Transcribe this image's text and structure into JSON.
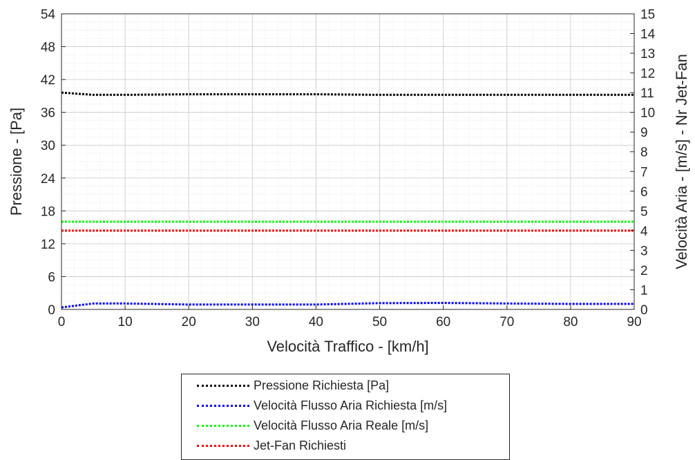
{
  "chart_data": {
    "type": "line",
    "xlabel": "Velocità Traffico - [km/h]",
    "ylabel": "Pressione - [Pa]",
    "ylabel_right": "Velocità Aria - [m/s] - Nr Jet-Fan",
    "xlim": [
      0,
      90
    ],
    "ylim": [
      0,
      54
    ],
    "ylim_right": [
      0,
      15
    ],
    "x_ticks": [
      "0",
      "10",
      "20",
      "30",
      "40",
      "50",
      "60",
      "70",
      "80",
      "90"
    ],
    "y_ticks": [
      "0",
      "6",
      "12",
      "18",
      "24",
      "30",
      "36",
      "42",
      "48",
      "54"
    ],
    "y_ticks_right": [
      "0",
      "1",
      "2",
      "3",
      "4",
      "5",
      "6",
      "7",
      "8",
      "9",
      "10",
      "11",
      "12",
      "13",
      "14",
      "15"
    ],
    "grid": true,
    "minor_grid": true,
    "x": [
      0,
      5,
      10,
      20,
      30,
      40,
      50,
      60,
      70,
      80,
      90
    ],
    "series": [
      {
        "name": "Pressione Richiesta [Pa]",
        "axis": "left",
        "color": "#000000",
        "values": [
          39.6,
          39.2,
          39.2,
          39.3,
          39.3,
          39.3,
          39.2,
          39.2,
          39.2,
          39.2,
          39.2
        ]
      },
      {
        "name": "Velocità Flusso Aria Richiesta [m/s]",
        "axis": "right",
        "color": "#0000ff",
        "values": [
          0.1,
          0.3,
          0.3,
          0.25,
          0.25,
          0.25,
          0.32,
          0.33,
          0.3,
          0.28,
          0.28
        ]
      },
      {
        "name": "Velocità Flusso Aria Reale [m/s]",
        "axis": "right",
        "color": "#00ff00",
        "values": [
          4.45,
          4.45,
          4.45,
          4.45,
          4.45,
          4.45,
          4.45,
          4.45,
          4.45,
          4.45,
          4.45
        ]
      },
      {
        "name": "Jet-Fan Richiesti",
        "axis": "right",
        "color": "#ff0000",
        "values": [
          4.0,
          4.0,
          4.0,
          4.0,
          4.0,
          4.0,
          4.0,
          4.0,
          4.0,
          4.0,
          4.0
        ]
      }
    ]
  }
}
